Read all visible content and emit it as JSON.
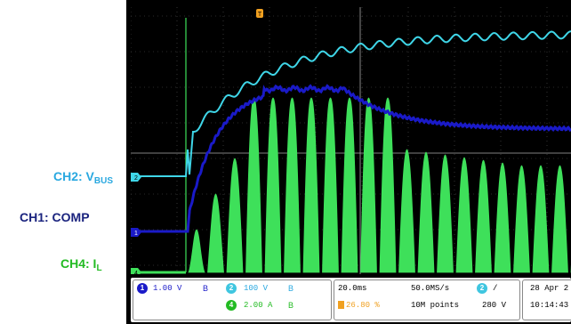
{
  "labels": {
    "ch2": {
      "main": "CH2: V",
      "sub": "BUS",
      "color": "#29a8e0"
    },
    "ch1": {
      "main": "CH1: COMP",
      "color": "#1a237e"
    },
    "ch4": {
      "main": "CH4: I",
      "sub": "L",
      "color": "#22bb22"
    }
  },
  "markers": {
    "trigger_position": "T",
    "ch2": "2",
    "ch1": "1",
    "ch4": "4"
  },
  "status": {
    "ch1_num": "1",
    "ch1_scale": "1.00 V",
    "ch1_bw": "B",
    "ch2_num": "2",
    "ch2_scale": "100 V",
    "ch2_bw": "B",
    "ch4_num": "4",
    "ch4_scale": "2.00 A",
    "ch4_bw": "B",
    "timebase": "20.0ms",
    "trigger_pos": "26.80 %",
    "sample_rate": "50.0MS/s",
    "record_length": "10M points",
    "trig_channel": "2",
    "trig_slope": "/",
    "trig_level": "280 V",
    "date": "28 Apr 2",
    "time": "10:14:43"
  },
  "colors": {
    "ch1": "#1a1ac8",
    "ch2": "#3fd6e8",
    "ch4": "#3ee05a",
    "trigger": "#f0a020"
  }
}
